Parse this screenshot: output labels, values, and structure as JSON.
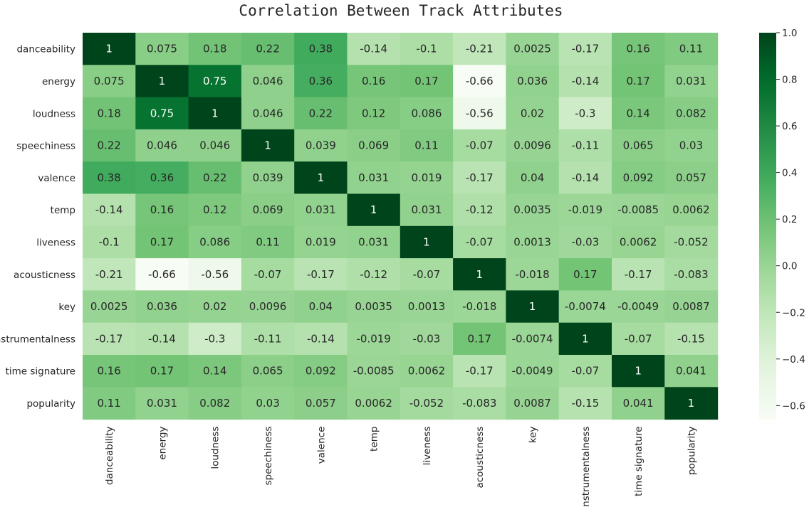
{
  "chart_data": {
    "type": "heatmap",
    "title": "Correlation Between Track Attributes",
    "xlabel": "",
    "ylabel": "",
    "labels": [
      "danceability",
      "energy",
      "loudness",
      "speechiness",
      "valence",
      "temp",
      "liveness",
      "acousticness",
      "key",
      "instrumentalness",
      "time signature",
      "popularity"
    ],
    "values": [
      [
        1,
        0.075,
        0.18,
        0.22,
        0.38,
        -0.14,
        -0.1,
        -0.21,
        0.0025,
        -0.17,
        0.16,
        0.11
      ],
      [
        0.075,
        1,
        0.75,
        0.046,
        0.36,
        0.16,
        0.17,
        -0.66,
        0.036,
        -0.14,
        0.17,
        0.031
      ],
      [
        0.18,
        0.75,
        1,
        0.046,
        0.22,
        0.12,
        0.086,
        -0.56,
        0.02,
        -0.3,
        0.14,
        0.082
      ],
      [
        0.22,
        0.046,
        0.046,
        1,
        0.039,
        0.069,
        0.11,
        -0.07,
        0.0096,
        -0.11,
        0.065,
        0.03
      ],
      [
        0.38,
        0.36,
        0.22,
        0.039,
        1,
        0.031,
        0.019,
        -0.17,
        0.04,
        -0.14,
        0.092,
        0.057
      ],
      [
        -0.14,
        0.16,
        0.12,
        0.069,
        0.031,
        1,
        0.031,
        -0.12,
        0.0035,
        -0.019,
        -0.0085,
        0.0062
      ],
      [
        -0.1,
        0.17,
        0.086,
        0.11,
        0.019,
        0.031,
        1,
        -0.07,
        0.0013,
        -0.03,
        0.0062,
        -0.052
      ],
      [
        -0.21,
        -0.66,
        -0.56,
        -0.07,
        -0.17,
        -0.12,
        -0.07,
        1,
        -0.018,
        0.17,
        -0.17,
        -0.083
      ],
      [
        0.0025,
        0.036,
        0.02,
        0.0096,
        0.04,
        0.0035,
        0.0013,
        -0.018,
        1,
        -0.0074,
        -0.0049,
        0.0087
      ],
      [
        -0.17,
        -0.14,
        -0.3,
        -0.11,
        -0.14,
        -0.019,
        -0.03,
        0.17,
        -0.0074,
        1,
        -0.07,
        -0.15
      ],
      [
        0.16,
        0.17,
        0.14,
        0.065,
        0.092,
        -0.0085,
        0.0062,
        -0.17,
        -0.0049,
        -0.07,
        1,
        0.041
      ],
      [
        0.11,
        0.031,
        0.082,
        0.03,
        0.057,
        0.0062,
        -0.052,
        -0.083,
        0.0087,
        -0.15,
        0.041,
        1
      ]
    ],
    "colormap": "Greens",
    "vmin": -0.66,
    "vmax": 1.0,
    "annotations": true,
    "colorbar": {
      "ticks": [
        1.0,
        0.8,
        0.6,
        0.4,
        0.2,
        0.0,
        -0.2,
        -0.4,
        -0.6
      ],
      "tick_labels": [
        "1.0",
        "0.8",
        "0.6",
        "0.4",
        "0.2",
        "0.0",
        "−0.2",
        "−0.4",
        "−0.6"
      ]
    },
    "grid": false
  }
}
